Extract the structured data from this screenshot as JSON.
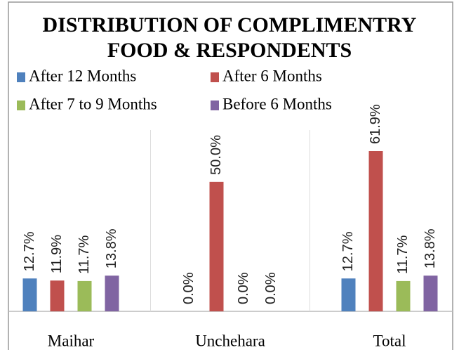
{
  "chart_data": {
    "type": "bar",
    "title": "DISTRIBUTION OF COMPLIMENTRY FOOD & RESPONDENTS",
    "categories": [
      "Maihar",
      "Unchehara",
      "Total"
    ],
    "series": [
      {
        "name": "After 12 Months",
        "color": "#4f81bd",
        "values": [
          12.7,
          0.0,
          12.7
        ],
        "value_labels": [
          "12.7%",
          "0.0%",
          "12.7%"
        ]
      },
      {
        "name": "After 6 Months",
        "color": "#c0504d",
        "values": [
          11.9,
          50.0,
          61.9
        ],
        "value_labels": [
          "11.9%",
          "50.0%",
          "61.9%"
        ]
      },
      {
        "name": "After 7 to 9 Months",
        "color": "#9bbb59",
        "values": [
          11.7,
          0.0,
          11.7
        ],
        "value_labels": [
          "11.7%",
          "0.0%",
          "11.7%"
        ]
      },
      {
        "name": "Before 6 Months",
        "color": "#8064a2",
        "values": [
          13.8,
          0.0,
          13.8
        ],
        "value_labels": [
          "13.8%",
          "0.0%",
          "13.8%"
        ]
      }
    ],
    "legend": "top"
  }
}
